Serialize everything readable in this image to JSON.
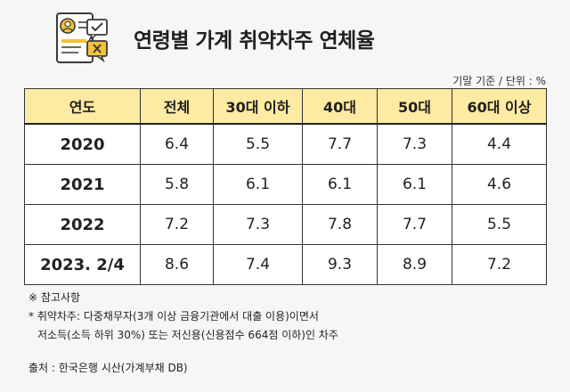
{
  "title": "연령별 가계 취약차주 연체율",
  "unit_label": "기말 기준 / 단위 : %",
  "chart_data": {
    "type": "table",
    "title": "연령별 가계 취약차주 연체율",
    "columns": [
      "연도",
      "전체",
      "30대 이하",
      "40대",
      "50대",
      "60대 이상"
    ],
    "rows": [
      {
        "year": "2020",
        "values": [
          "6.4",
          "5.5",
          "7.7",
          "7.3",
          "4.4"
        ]
      },
      {
        "year": "2021",
        "values": [
          "5.8",
          "6.1",
          "6.1",
          "6.1",
          "4.6"
        ]
      },
      {
        "year": "2022",
        "values": [
          "7.2",
          "7.3",
          "7.8",
          "7.7",
          "5.5"
        ]
      },
      {
        "year": "2023. 2/4",
        "values": [
          "8.6",
          "7.4",
          "9.3",
          "8.9",
          "7.2"
        ]
      }
    ]
  },
  "notes": {
    "heading": "※ 참고사항",
    "line1": "* 취약차주: 다중채무자(3개 이상 금융기관에서 대출 이용)이면서",
    "line2": "저소득(소득 하위 30%) 또는 저신용(신용점수 664점 이하)인 차주"
  },
  "source": "출처 : 한국은행 시산(가계부채 DB)",
  "colors": {
    "header_bg": "#fdeaa3",
    "icon_accent": "#f2c23a",
    "border": "#333333",
    "page_bg": "#f6f6f6"
  },
  "icons": [
    "document-profile-icon",
    "check-speech-bubble-icon",
    "x-speech-bubble-icon"
  ]
}
